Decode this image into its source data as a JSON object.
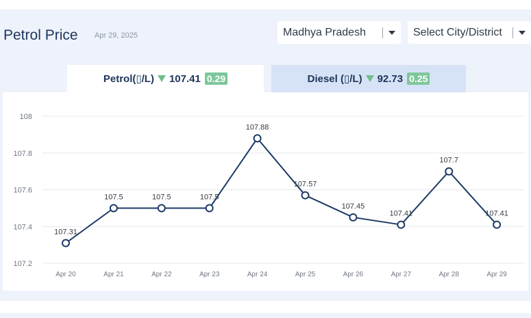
{
  "header": {
    "title": "Petrol Price",
    "date": "Apr 29, 2025"
  },
  "filters": {
    "state": {
      "selected": "Madhya Pradesh"
    },
    "city": {
      "placeholder": "Select City/District"
    }
  },
  "tabs": [
    {
      "label": "Petrol(▯/L)",
      "price": "107.41",
      "change": "0.29",
      "direction": "down",
      "active": true
    },
    {
      "label": "Diesel (▯/L)",
      "price": "92.73",
      "change": "0.25",
      "direction": "down",
      "active": false
    }
  ],
  "colors": {
    "line": "#1d3a66",
    "badge": "#7dc79a",
    "arrow": "#6fbf8a",
    "active_tab": "#ffffff",
    "inactive_tab": "#d6e2f6"
  },
  "chart_data": {
    "type": "line",
    "categories": [
      "Apr 20",
      "Apr 21",
      "Apr 22",
      "Apr 23",
      "Apr 24",
      "Apr 25",
      "Apr 26",
      "Apr 27",
      "Apr 28",
      "Apr 29"
    ],
    "values": [
      107.31,
      107.5,
      107.5,
      107.5,
      107.88,
      107.57,
      107.45,
      107.41,
      107.7,
      107.41
    ],
    "point_labels": [
      "107.31",
      "107.5",
      "107.5",
      "107.5",
      "107.88",
      "107.57",
      "107.45",
      "107.41",
      "107.7",
      "107.41"
    ],
    "yticks": [
      107.2,
      107.4,
      107.6,
      107.8,
      108
    ],
    "ytick_labels": [
      "107.2",
      "107.4",
      "107.6",
      "107.8",
      "108"
    ],
    "ylim": [
      107.2,
      108
    ],
    "grid": true,
    "markers": "hollow-circle"
  }
}
